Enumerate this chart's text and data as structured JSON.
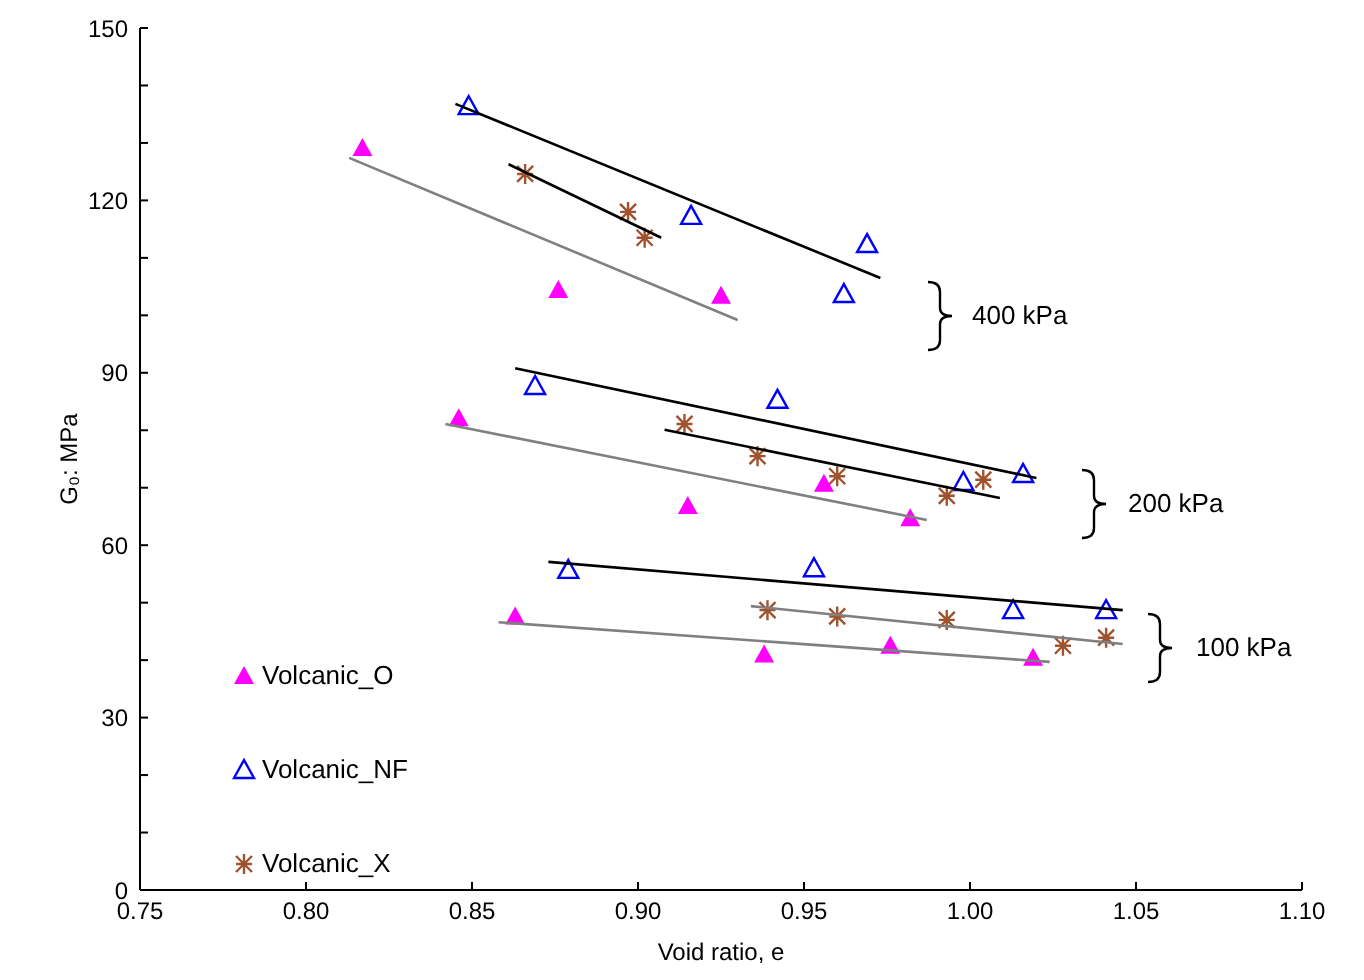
{
  "chart_data": {
    "type": "scatter",
    "xlabel": "Void ratio, e",
    "ylabel": "G₀: MPa",
    "xlim": [
      0.75,
      1.1
    ],
    "ylim": [
      0,
      150
    ],
    "xticks": [
      0.75,
      {
        "value": 0.8,
        "label": "0.80"
      },
      0.85,
      {
        "value": 0.9,
        "label": "0.90"
      },
      0.95,
      {
        "value": 1.0,
        "label": "1.00"
      },
      1.05,
      {
        "value": 1.1,
        "label": "1.10"
      }
    ],
    "yticks": [
      0,
      {
        "value": 10,
        "label": null
      },
      {
        "value": 20,
        "label": null
      },
      30,
      {
        "value": 40,
        "label": null
      },
      {
        "value": 50,
        "label": null
      },
      60,
      {
        "value": 70,
        "label": null
      },
      {
        "value": 80,
        "label": null
      },
      90,
      {
        "value": 100,
        "label": null
      },
      {
        "value": 110,
        "label": null
      },
      120,
      {
        "value": 130,
        "label": null
      },
      {
        "value": 140,
        "label": null
      },
      150
    ],
    "grid": false,
    "legend": "left",
    "annotations": [
      "400 kPa",
      "200 kPa",
      "100 kPa"
    ],
    "series": [
      {
        "name": "Volcanic_O",
        "color": "#ff00ff",
        "marker": "triangle",
        "x": [
          0.817,
          0.876,
          0.925,
          0.846,
          0.915,
          0.956,
          0.982,
          0.863,
          0.938,
          0.976,
          1.019
        ],
        "values": [
          129.1,
          104.4,
          103.4,
          82.1,
          66.8,
          70.7,
          64.7,
          47.6,
          41.0,
          42.5,
          40.4
        ]
      },
      {
        "name": "Volcanic_NF",
        "color": "#0000ff",
        "marker": "triangle-open",
        "x": [
          0.849,
          0.916,
          0.969,
          0.962,
          0.869,
          0.942,
          0.998,
          1.016,
          0.879,
          0.953,
          1.013,
          1.041
        ],
        "values": [
          136.4,
          117.3,
          112.4,
          103.7,
          87.7,
          85.3,
          71.0,
          72.4,
          55.7,
          56.0,
          48.7,
          48.7
        ]
      },
      {
        "name": "Volcanic_X",
        "color": "#a0522d",
        "marker": "cross",
        "x": [
          0.866,
          0.897,
          0.902,
          0.914,
          0.936,
          0.96,
          0.993,
          1.004,
          0.939,
          0.96,
          0.993,
          1.028,
          1.041
        ],
        "values": [
          124.6,
          118.0,
          113.5,
          81.1,
          75.5,
          72.0,
          68.6,
          71.4,
          48.7,
          47.6,
          47.0,
          42.5,
          43.9
        ]
      },
      {
        "type": "line",
        "color": "#000000",
        "marker": "none",
        "x": [
          0.845,
          0.973
        ],
        "values": [
          136.8,
          106.5
        ]
      },
      {
        "type": "line",
        "color": "#000000",
        "marker": "none",
        "x": [
          0.861,
          0.907
        ],
        "values": [
          126.3,
          113.5
        ]
      },
      {
        "type": "line",
        "color": "#808080",
        "marker": "none",
        "x": [
          0.813,
          0.93
        ],
        "values": [
          127.4,
          99.2
        ]
      },
      {
        "type": "line",
        "color": "#000000",
        "marker": "none",
        "x": [
          0.863,
          1.02
        ],
        "values": [
          90.8,
          71.7
        ]
      },
      {
        "type": "line",
        "color": "#000000",
        "marker": "none",
        "x": [
          0.908,
          1.009
        ],
        "values": [
          80.1,
          68.2
        ]
      },
      {
        "type": "line",
        "color": "#808080",
        "marker": "none",
        "x": [
          0.842,
          0.987
        ],
        "values": [
          81.1,
          64.4
        ]
      },
      {
        "type": "line",
        "color": "#000000",
        "marker": "none",
        "x": [
          0.873,
          1.046
        ],
        "values": [
          57.1,
          48.7
        ]
      },
      {
        "type": "line",
        "color": "#808080",
        "marker": "none",
        "x": [
          0.934,
          1.046
        ],
        "values": [
          49.4,
          42.8
        ]
      },
      {
        "type": "line",
        "color": "#808080",
        "marker": "none",
        "x": [
          0.858,
          1.024
        ],
        "values": [
          46.6,
          39.7
        ]
      }
    ]
  }
}
